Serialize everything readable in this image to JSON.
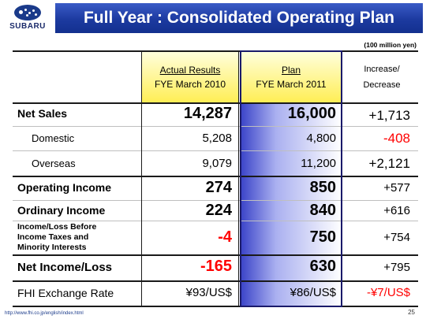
{
  "header": {
    "logo_text": "SUBARU",
    "title": "Full Year : Consolidated Operating Plan"
  },
  "unit_note": "(100 million yen)",
  "columns": {
    "actual_line1": "Actual Results",
    "actual_line2": "FYE March 2010",
    "plan_line1": "Plan",
    "plan_line2": "FYE March 2011",
    "change_line1": "Increase/",
    "change_line2": "Decrease"
  },
  "rows": [
    {
      "label": "Net Sales",
      "actual": "14,287",
      "plan": "16,000",
      "change": "+1,713"
    },
    {
      "label": "Domestic",
      "actual": "5,208",
      "plan": "4,800",
      "change": "-408"
    },
    {
      "label": "Overseas",
      "actual": "9,079",
      "plan": "11,200",
      "change": "+2,121"
    },
    {
      "label": "Operating Income",
      "actual": "274",
      "plan": "850",
      "change": "+577"
    },
    {
      "label": "Ordinary Income",
      "actual": "224",
      "plan": "840",
      "change": "+616"
    },
    {
      "label_line1": "Income/Loss Before",
      "label_line2": "Income Taxes and",
      "label_line3": "Minority Interests",
      "actual": "-4",
      "plan": "750",
      "change": "+754"
    },
    {
      "label": "Net Income/Loss",
      "actual": "-165",
      "plan": "630",
      "change": "+795"
    },
    {
      "label": "FHI Exchange Rate",
      "actual": "¥93/US$",
      "plan": "¥86/US$",
      "change": "-¥7/US$"
    }
  ],
  "colors": {
    "accent": "#1c3aa0",
    "negative": "#ff0000",
    "highlight_yellow": "#ffee55"
  },
  "footer": {
    "url": "http://www.fhi.co.jp/english/index.html",
    "page": "25"
  }
}
